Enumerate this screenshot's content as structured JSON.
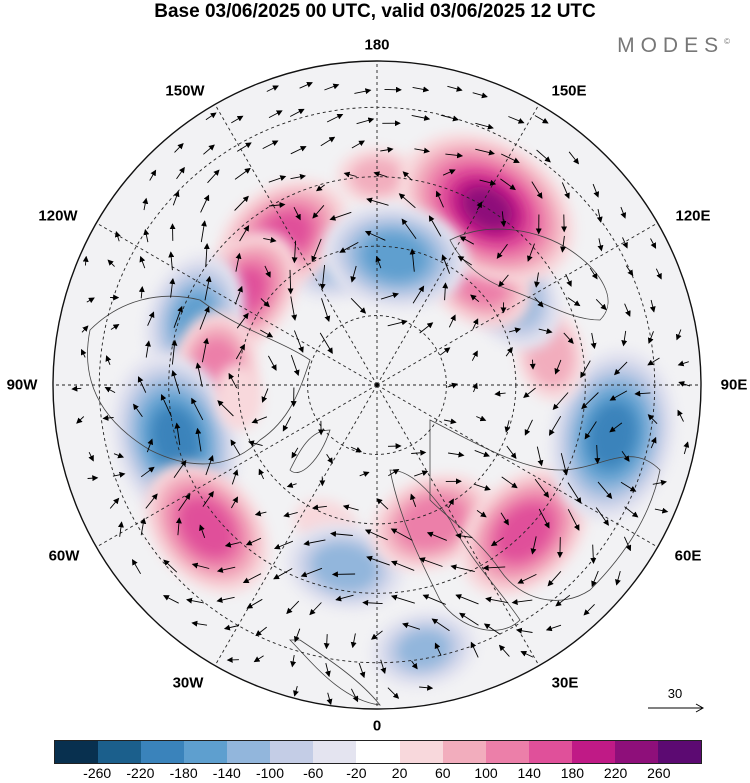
{
  "title": "Base 03/06/2025 00 UTC, valid 03/06/2025 12 UTC",
  "brand": "MODES",
  "brand_mark": "©",
  "lon_labels": {
    "top": "180",
    "top_left": "150W",
    "top_right": "150E",
    "upper_left": "120W",
    "upper_right": "120E",
    "left": "90W",
    "right": "90E",
    "lower_left": "60W",
    "lower_right": "60E",
    "bottom_left": "30W",
    "bottom_right": "30E",
    "bottom": "0"
  },
  "reference_vector": {
    "label": "30"
  },
  "colorbar": {
    "colors": [
      "#08304f",
      "#1b5f8c",
      "#3a83bb",
      "#5e9fcf",
      "#92b6dc",
      "#c4cde6",
      "#e4e4f0",
      "#ffffff",
      "#f8d8dc",
      "#f2adbd",
      "#ec7fa9",
      "#e0509a",
      "#c01a86",
      "#8e0f7a",
      "#5c0a72"
    ],
    "tick_labels": [
      "-260",
      "-220",
      "-180",
      "-140",
      "-100",
      "-60",
      "-20",
      "20",
      "60",
      "100",
      "140",
      "180",
      "220",
      "260"
    ]
  },
  "anomaly_centers": [
    {
      "lon_deg": 180,
      "lat_deg": 45,
      "value": 60
    },
    {
      "lon_deg": -163,
      "lat_deg": 62,
      "value": -100
    },
    {
      "lon_deg": -148,
      "lat_deg": 52,
      "value": 150
    },
    {
      "lon_deg": -125,
      "lat_deg": 55,
      "value": 140
    },
    {
      "lon_deg": -110,
      "lat_deg": 48,
      "value": -140
    },
    {
      "lon_deg": -95,
      "lat_deg": 55,
      "value": 120
    },
    {
      "lon_deg": -75,
      "lat_deg": 45,
      "value": -200
    },
    {
      "lon_deg": -50,
      "lat_deg": 42,
      "value": 160
    },
    {
      "lon_deg": -20,
      "lat_deg": 58,
      "value": 40
    },
    {
      "lon_deg": -10,
      "lat_deg": 50,
      "value": -120
    },
    {
      "lon_deg": 10,
      "lat_deg": 32,
      "value": -100
    },
    {
      "lon_deg": 22,
      "lat_deg": 58,
      "value": 130
    },
    {
      "lon_deg": 45,
      "lat_deg": 45,
      "value": 160
    },
    {
      "lon_deg": 78,
      "lat_deg": 38,
      "value": -200
    },
    {
      "lon_deg": 100,
      "lat_deg": 52,
      "value": 80
    },
    {
      "lon_deg": 125,
      "lat_deg": 55,
      "value": -130
    },
    {
      "lon_deg": 138,
      "lat_deg": 58,
      "value": 130
    },
    {
      "lon_deg": 148,
      "lat_deg": 45,
      "value": 220
    },
    {
      "lon_deg": 172,
      "lat_deg": 62,
      "value": -160
    },
    {
      "lon_deg": -85,
      "lat_deg": 60,
      "value": 40
    }
  ]
}
